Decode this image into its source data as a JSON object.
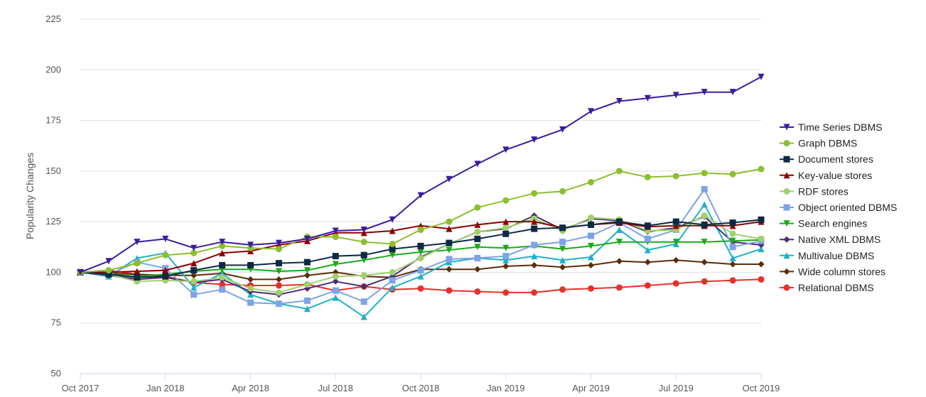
{
  "chart_data": {
    "type": "line",
    "title": "",
    "xlabel": "",
    "ylabel": "Popularity Changes",
    "ylim": [
      50,
      225
    ],
    "yticks": [
      50,
      75,
      100,
      125,
      150,
      175,
      200,
      225
    ],
    "x": [
      "Oct 2017",
      "Nov 2017",
      "Dec 2017",
      "Jan 2018",
      "Feb 2018",
      "Mar 2018",
      "Apr 2018",
      "May 2018",
      "Jun 2018",
      "Jul 2018",
      "Aug 2018",
      "Sep 2018",
      "Oct 2018",
      "Nov 2018",
      "Dec 2018",
      "Jan 2019",
      "Feb 2019",
      "Mar 2019",
      "Apr 2019",
      "May 2019",
      "Jun 2019",
      "Jul 2019",
      "Aug 2019",
      "Sep 2019",
      "Oct 2019"
    ],
    "xtick_labels": [
      {
        "index": 0,
        "label": "Oct 2017"
      },
      {
        "index": 3,
        "label": "Jan 2018"
      },
      {
        "index": 6,
        "label": "Apr 2018"
      },
      {
        "index": 9,
        "label": "Jul 2018"
      },
      {
        "index": 12,
        "label": "Oct 2018"
      },
      {
        "index": 15,
        "label": "Jan 2019"
      },
      {
        "index": 18,
        "label": "Apr 2019"
      },
      {
        "index": 21,
        "label": "Jul 2019"
      },
      {
        "index": 24,
        "label": "Oct 2019"
      }
    ],
    "legend_position": "right",
    "grid": true,
    "series": [
      {
        "name": "Time Series DBMS",
        "color": "#3b1ba0",
        "marker": "triangle-down",
        "values": [
          100,
          105.5,
          115,
          116.5,
          112,
          115,
          113.5,
          114.5,
          116.5,
          120.5,
          121,
          126,
          138,
          146,
          153.5,
          160.5,
          165.5,
          170.5,
          179.5,
          184.5,
          186,
          187.5,
          189,
          189,
          196.5
        ]
      },
      {
        "name": "Graph DBMS",
        "color": "#8cbf2e",
        "marker": "circle",
        "values": [
          100,
          101,
          104.5,
          108.5,
          109.5,
          113,
          112,
          111.5,
          117.5,
          117.5,
          115,
          114,
          121,
          125,
          132,
          135.5,
          139,
          140,
          144.5,
          150,
          147,
          147.5,
          149,
          148.5,
          151
        ]
      },
      {
        "name": "Document stores",
        "color": "#0d2a45",
        "marker": "square",
        "values": [
          100,
          99,
          97.5,
          98,
          101,
          103.5,
          103.5,
          104.5,
          105,
          108,
          108.5,
          111.5,
          113,
          114.5,
          116.5,
          119,
          121.5,
          122,
          123.5,
          125,
          123,
          125,
          123.5,
          124.5,
          126
        ]
      },
      {
        "name": "Key-value stores",
        "color": "#8b0000",
        "marker": "triangle-up",
        "values": [
          100,
          100,
          100.5,
          101,
          104.5,
          109.5,
          110.5,
          113.5,
          115.5,
          119.5,
          119.5,
          120.5,
          123,
          121.5,
          123.5,
          125,
          125,
          122,
          123.5,
          124.5,
          122.5,
          123,
          123,
          123,
          125
        ]
      },
      {
        "name": "RDF stores",
        "color": "#9fd06d",
        "marker": "circle",
        "values": [
          100,
          99,
          95.5,
          96,
          95.5,
          97.5,
          92,
          90,
          94,
          98,
          98.5,
          100,
          107,
          114,
          120,
          122,
          126.5,
          120.5,
          127,
          126,
          120.5,
          121,
          128,
          119,
          116.5
        ]
      },
      {
        "name": "Object oriented DBMS",
        "color": "#7ea3e6",
        "marker": "square",
        "values": [
          100,
          99,
          105,
          102,
          89,
          91.5,
          85,
          84.5,
          86,
          91,
          85.5,
          96,
          101,
          106.5,
          107,
          108,
          113.5,
          115,
          118,
          124.5,
          116.5,
          121,
          141,
          112.5,
          115.5
        ]
      },
      {
        "name": "Search engines",
        "color": "#1aaa1a",
        "marker": "triangle-down",
        "values": [
          100,
          99,
          98,
          99,
          100.5,
          101.5,
          101.5,
          100.5,
          101,
          104,
          106,
          108.5,
          110,
          111,
          112.5,
          112,
          113,
          111.5,
          113,
          115,
          115,
          115,
          115,
          115.5,
          116
        ]
      },
      {
        "name": "Native XML DBMS",
        "color": "#4e2873",
        "marker": "diamond",
        "values": [
          100,
          98.5,
          96.5,
          97.5,
          95,
          96.5,
          90.5,
          89,
          92,
          95.5,
          93,
          98,
          107.5,
          114,
          120,
          121.5,
          128,
          121,
          126.5,
          125.5,
          120,
          122,
          127.5,
          115,
          113.5
        ]
      },
      {
        "name": "Multivalue DBMS",
        "color": "#21b0c8",
        "marker": "triangle-up",
        "values": [
          100,
          98,
          107,
          109.5,
          92.5,
          99.5,
          89,
          84.5,
          82,
          87.5,
          78,
          92.5,
          98,
          105,
          107,
          106,
          108,
          106,
          107.5,
          121,
          111,
          114,
          133.5,
          107,
          111.5
        ]
      },
      {
        "name": "Wide column stores",
        "color": "#5a2d0c",
        "marker": "diamond",
        "values": [
          100,
          99.5,
          99,
          98.5,
          98.5,
          99.5,
          96.5,
          96.5,
          98.5,
          100,
          98,
          97.5,
          101.5,
          101.5,
          101.5,
          103,
          103.5,
          102.5,
          103.5,
          105.5,
          105,
          106,
          105,
          104,
          104
        ]
      },
      {
        "name": "Relational DBMS",
        "color": "#e8302a",
        "marker": "circle",
        "values": [
          100,
          101,
          99,
          98,
          95,
          94,
          93.5,
          93.5,
          94,
          91,
          93,
          91.5,
          92,
          91,
          90.5,
          90,
          90,
          91.5,
          92,
          92.5,
          93.5,
          94.5,
          95.5,
          96,
          96.5
        ]
      }
    ]
  }
}
